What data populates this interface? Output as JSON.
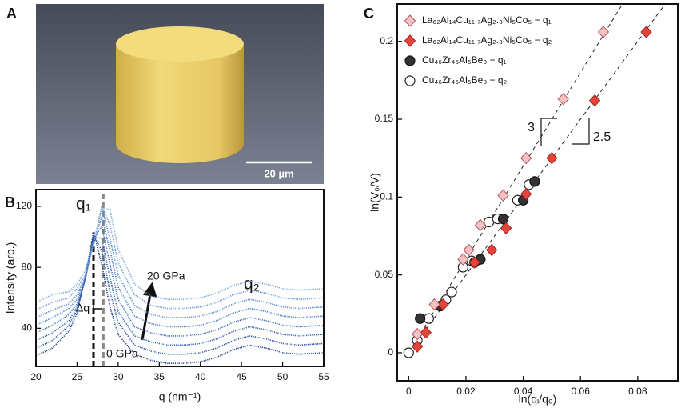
{
  "image_panel": {
    "panel": "A",
    "scale_bar": "20 µm"
  },
  "chart_data": [
    {
      "type": "line",
      "panel": "B",
      "xlabel": "q (nm⁻¹)",
      "ylabel": "Intensity (arb.)",
      "x": [
        20,
        22,
        24,
        25,
        26,
        27,
        28,
        29,
        30,
        32,
        34,
        36,
        38,
        40,
        42,
        44,
        46,
        48,
        50,
        52,
        55
      ],
      "series": [
        {
          "color": "#1c3f8e",
          "values": [
            22,
            27,
            38,
            50,
            74,
            103,
            82,
            54,
            36,
            23,
            19,
            17,
            17,
            18,
            21,
            26,
            29,
            27,
            24,
            23,
            24
          ]
        },
        {
          "color": "#24509f",
          "values": [
            27,
            32,
            42,
            52,
            73,
            101,
            91,
            64,
            44,
            29,
            25,
            23,
            23,
            24,
            27,
            32,
            35,
            33,
            30,
            29,
            30
          ]
        },
        {
          "color": "#2d5fae",
          "values": [
            32,
            37,
            45,
            54,
            72,
            100,
            99,
            73,
            51,
            35,
            31,
            29,
            29,
            30,
            33,
            38,
            41,
            39,
            36,
            35,
            36
          ]
        },
        {
          "color": "#3a6dbb",
          "values": [
            37,
            42,
            49,
            56,
            72,
            98,
            107,
            82,
            59,
            41,
            37,
            35,
            35,
            36,
            39,
            44,
            47,
            45,
            42,
            41,
            42
          ]
        },
        {
          "color": "#4a7cc6",
          "values": [
            42,
            47,
            53,
            59,
            73,
            97,
            113,
            91,
            67,
            48,
            43,
            41,
            41,
            42,
            45,
            50,
            53,
            51,
            48,
            47,
            48
          ]
        },
        {
          "color": "#5a8bd0",
          "values": [
            47,
            52,
            56,
            62,
            74,
            96,
            119,
            99,
            75,
            55,
            49,
            47,
            47,
            48,
            51,
            56,
            59,
            57,
            54,
            53,
            54
          ]
        },
        {
          "color": "#6a99d8",
          "values": [
            52,
            57,
            60,
            66,
            75,
            95,
            120,
            108,
            83,
            62,
            55,
            53,
            53,
            54,
            57,
            62,
            65,
            63,
            60,
            59,
            60
          ]
        },
        {
          "color": "#7ba8e0",
          "values": [
            57,
            62,
            64,
            69,
            78,
            95,
            119,
            118,
            92,
            69,
            61,
            59,
            59,
            60,
            63,
            68,
            71,
            69,
            66,
            65,
            66
          ]
        }
      ],
      "peak_positions": [
        27,
        28.2
      ],
      "annotations": [
        "q₁",
        "q₂",
        "Δq",
        "20 GPa",
        "0 GPa"
      ],
      "xlim": [
        20,
        55
      ],
      "xticks": [
        20,
        25,
        30,
        35,
        40,
        45,
        50,
        55
      ],
      "ylim": [
        15,
        131
      ],
      "yticks": [
        40,
        80,
        120
      ]
    },
    {
      "type": "scatter",
      "panel": "C",
      "xlabel": "ln(qᵢ/q₀)",
      "ylabel": "ln(V₀/V)",
      "legend": "upper left",
      "series": [
        {
          "name": "La₆₂Al₁₄Cu₁₁.₇Ag₂.₃Ni₅Co₅ − q₁",
          "marker": "diamond",
          "color": "#f7c1c4",
          "edge": "#b0585e",
          "x": [
            0.003,
            0.009,
            0.019,
            0.021,
            0.025,
            0.033,
            0.041,
            0.054,
            0.068
          ],
          "values": [
            0.012,
            0.031,
            0.06,
            0.066,
            0.082,
            0.101,
            0.125,
            0.163,
            0.206
          ]
        },
        {
          "name": "La₆₂Al₁₄Cu₁₁.₇Ag₂.₃Ni₅Co₅ − q₂",
          "marker": "diamond",
          "color": "#e5443b",
          "edge": "#9a2520",
          "x": [
            0.003,
            0.006,
            0.012,
            0.023,
            0.029,
            0.034,
            0.041,
            0.05,
            0.065,
            0.083
          ],
          "values": [
            0.004,
            0.013,
            0.031,
            0.058,
            0.066,
            0.08,
            0.102,
            0.125,
            0.162,
            0.206
          ]
        },
        {
          "name": "Cu₄₆Zr₄₆Al₅Be₃ − q₁",
          "marker": "circle",
          "color": "#333333",
          "edge": "#111111",
          "x": [
            0.004,
            0.011,
            0.023,
            0.025,
            0.033,
            0.04,
            0.044
          ],
          "values": [
            0.022,
            0.03,
            0.058,
            0.06,
            0.086,
            0.098,
            0.11
          ]
        },
        {
          "name": "Cu₄₆Zr₄₆Al₅Be₃ − q₂",
          "marker": "circle",
          "color": "#ffffff",
          "edge": "#222222",
          "x": [
            0,
            0.003,
            0.007,
            0.013,
            0.015,
            0.019,
            0.022,
            0.028,
            0.031,
            0.038,
            0.042
          ],
          "values": [
            0,
            0.008,
            0.022,
            0.034,
            0.039,
            0.055,
            0.059,
            0.084,
            0.086,
            0.098,
            0.108
          ]
        }
      ],
      "fit_slopes": [
        3,
        2.5
      ],
      "xlim": [
        -0.004,
        0.094
      ],
      "xticks": [
        0,
        0.02,
        0.04,
        0.06,
        0.08
      ],
      "ylim": [
        -0.018,
        0.224
      ],
      "yticks": [
        0,
        0.05,
        0.1,
        0.15,
        0.2
      ]
    }
  ]
}
